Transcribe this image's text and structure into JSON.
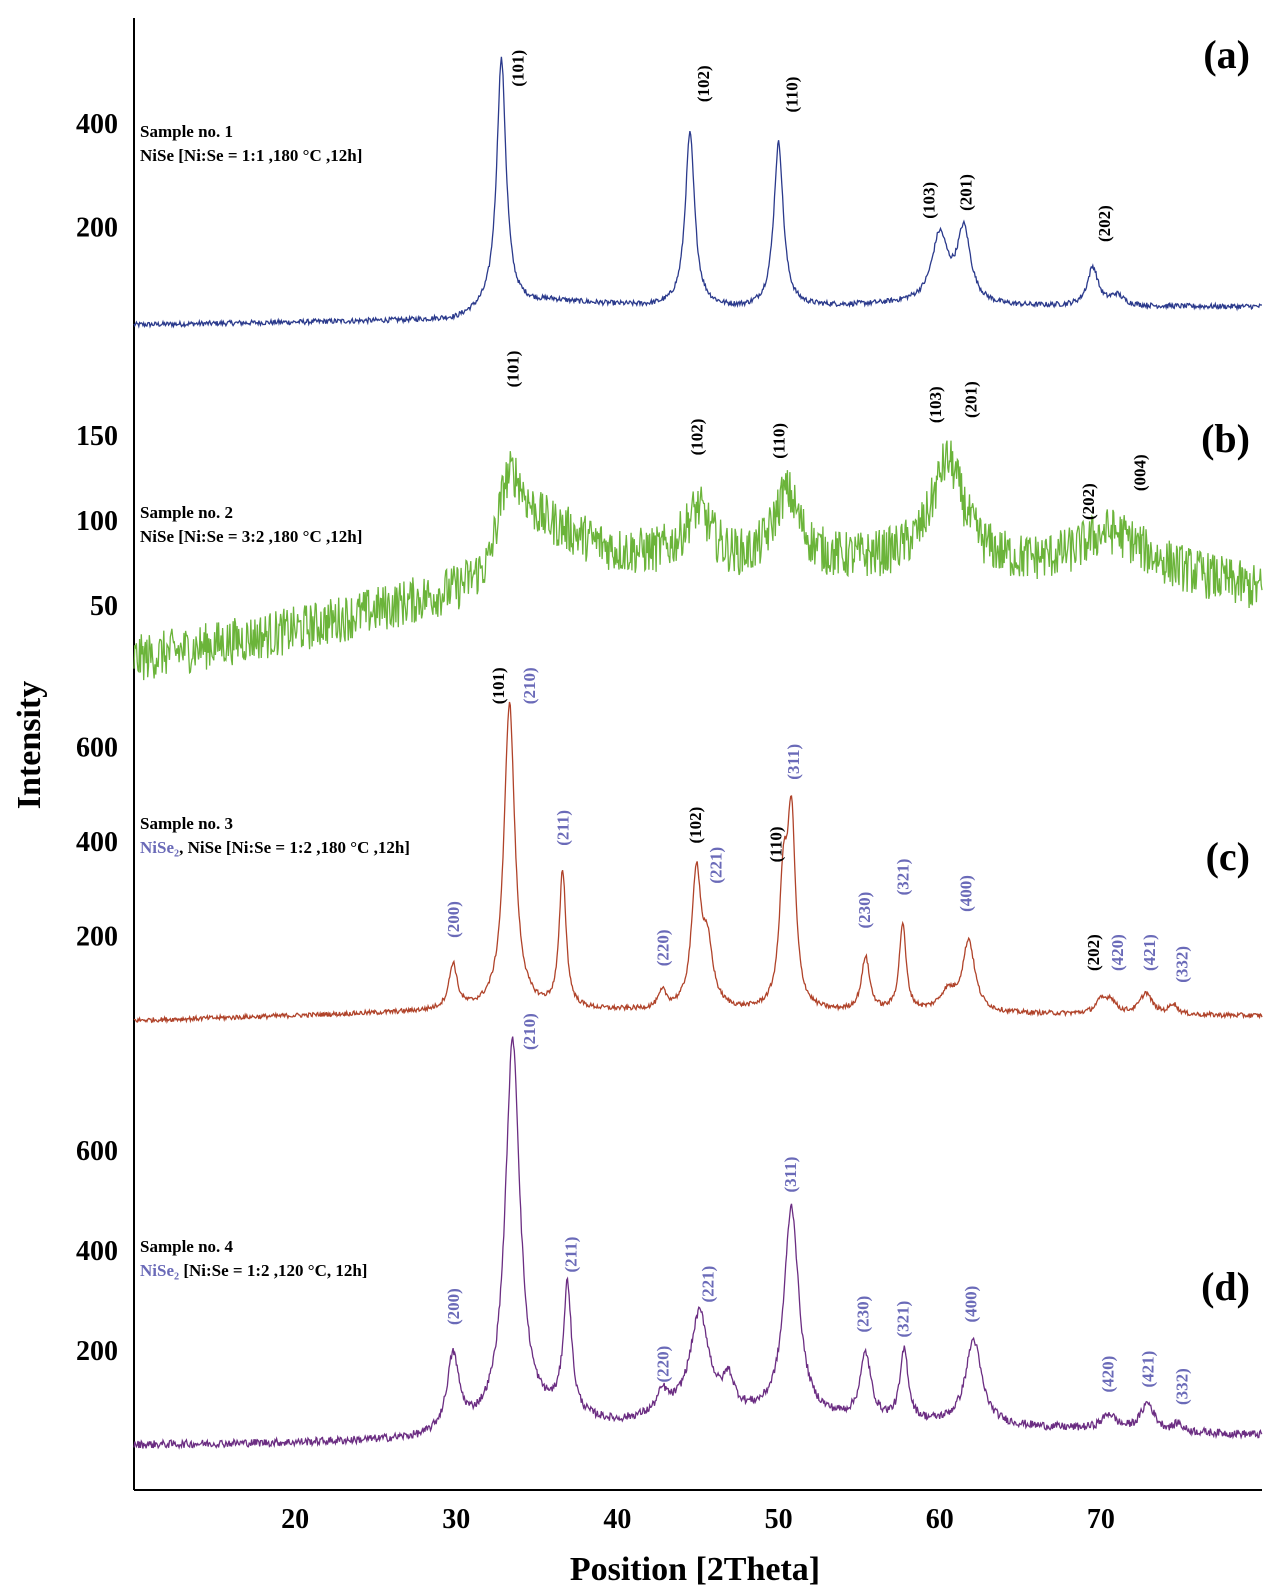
{
  "chart_data": {
    "type": "line",
    "xlabel": "Position [2Theta]",
    "ylabel": "Intensity",
    "xlim": [
      10,
      80
    ],
    "xticks": [
      20,
      30,
      40,
      50,
      60,
      70
    ],
    "grid": false,
    "panels": [
      {
        "id": "a",
        "letter": "(a)",
        "color": "#2b3a8c",
        "ylim": [
          0,
          560
        ],
        "yticks": [
          200,
          400
        ],
        "sample_lines": [
          [
            {
              "text": "Sample no. 1",
              "color": "black"
            }
          ],
          [
            {
              "text": "NiSe [Ni:Se = 1:1 ,180 °C ,12h]",
              "color": "black"
            }
          ]
        ],
        "noise": 5,
        "baseline": [
          [
            10,
            10
          ],
          [
            30,
            20
          ],
          [
            32,
            40
          ],
          [
            36,
            55
          ],
          [
            42,
            45
          ],
          [
            48,
            40
          ],
          [
            58,
            50
          ],
          [
            64,
            45
          ],
          [
            80,
            45
          ]
        ],
        "peaks": [
          [
            32.8,
            480,
            0.35
          ],
          [
            44.5,
            335,
            0.35
          ],
          [
            50.0,
            318,
            0.35
          ],
          [
            60.0,
            130,
            0.6
          ],
          [
            61.5,
            140,
            0.5
          ],
          [
            69.5,
            75,
            0.4
          ],
          [
            71,
            20,
            0.5
          ]
        ],
        "labels": [
          {
            "text": "(101)",
            "x": 33.8,
            "y": 470,
            "color": "black"
          },
          {
            "text": "(102)",
            "x": 45.3,
            "y": 440,
            "color": "black"
          },
          {
            "text": "(110)",
            "x": 50.8,
            "y": 420,
            "color": "black"
          },
          {
            "text": "(103)",
            "x": 59.3,
            "y": 215,
            "color": "black"
          },
          {
            "text": "(201)",
            "x": 61.6,
            "y": 230,
            "color": "black"
          },
          {
            "text": "(202)",
            "x": 70.2,
            "y": 170,
            "color": "black"
          }
        ]
      },
      {
        "id": "b",
        "letter": "(b)",
        "color": "#6bb43a",
        "ylim": [
          0,
          200
        ],
        "yticks": [
          50,
          100,
          150
        ],
        "sample_lines": [
          [
            {
              "text": "Sample no. 2",
              "color": "black"
            }
          ],
          [
            {
              "text": "NiSe [Ni:Se = 3:2 ,180 °C ,12h]",
              "color": "black"
            }
          ]
        ],
        "noise": 14,
        "baseline": [
          [
            10,
            18
          ],
          [
            20,
            35
          ],
          [
            30,
            58
          ],
          [
            32,
            68
          ],
          [
            33,
            100
          ],
          [
            36,
            95
          ],
          [
            40,
            80
          ],
          [
            48,
            72
          ],
          [
            58,
            75
          ],
          [
            65,
            72
          ],
          [
            72,
            75
          ],
          [
            80,
            58
          ]
        ],
        "peaks": [
          [
            33.5,
            28,
            0.9
          ],
          [
            45,
            30,
            1.0
          ],
          [
            50.5,
            42,
            1.0
          ],
          [
            60.5,
            60,
            1.2
          ],
          [
            70.5,
            18,
            2.0
          ]
        ],
        "labels": [
          {
            "text": "(101)",
            "x": 33.5,
            "y": 178,
            "color": "black"
          },
          {
            "text": "(102)",
            "x": 44.9,
            "y": 138,
            "color": "black"
          },
          {
            "text": "(110)",
            "x": 50.0,
            "y": 136,
            "color": "black"
          },
          {
            "text": "(103)",
            "x": 59.7,
            "y": 157,
            "color": "black"
          },
          {
            "text": "(201)",
            "x": 61.9,
            "y": 160,
            "color": "black"
          },
          {
            "text": "(202)",
            "x": 69.2,
            "y": 100,
            "color": "black"
          },
          {
            "text": "(004)",
            "x": 72.4,
            "y": 117,
            "color": "black"
          }
        ]
      },
      {
        "id": "c",
        "letter": "(c)",
        "color": "#b0432a",
        "ylim": [
          0,
          720
        ],
        "yticks": [
          200,
          400,
          600
        ],
        "sample_lines": [
          [
            {
              "text": "Sample no. 3",
              "color": "black"
            }
          ],
          [
            {
              "text": "NiSe₂",
              "color": "blue"
            },
            {
              "text": ", NiSe [Ni:Se = 1:2 ,180 °C ,12h]",
              "color": "black"
            }
          ]
        ],
        "noise": 5,
        "baseline": [
          [
            10,
            20
          ],
          [
            20,
            30
          ],
          [
            30,
            40
          ],
          [
            40,
            40
          ],
          [
            60,
            35
          ],
          [
            80,
            30
          ]
        ],
        "peaks": [
          [
            29.8,
            95,
            0.3
          ],
          [
            33.3,
            650,
            0.4
          ],
          [
            36.6,
            290,
            0.25
          ],
          [
            42.8,
            35,
            0.3
          ],
          [
            44.9,
            285,
            0.35
          ],
          [
            45.6,
            120,
            0.4
          ],
          [
            50.3,
            250,
            0.3
          ],
          [
            50.8,
            390,
            0.3
          ],
          [
            55.4,
            115,
            0.3
          ],
          [
            57.7,
            185,
            0.25
          ],
          [
            61.8,
            150,
            0.45
          ],
          [
            60.5,
            40,
            0.6
          ],
          [
            70.0,
            25,
            0.4
          ],
          [
            70.6,
            28,
            0.4
          ],
          [
            72.8,
            45,
            0.45
          ],
          [
            74.5,
            22,
            0.3
          ]
        ],
        "labels": [
          {
            "text": "(200)",
            "x": 29.8,
            "y": 195,
            "color": "blue"
          },
          {
            "text": "(101)",
            "x": 32.6,
            "y": 690,
            "color": "black"
          },
          {
            "text": "(210)",
            "x": 34.5,
            "y": 690,
            "color": "blue"
          },
          {
            "text": "(211)",
            "x": 36.6,
            "y": 390,
            "color": "blue"
          },
          {
            "text": "(220)",
            "x": 42.8,
            "y": 135,
            "color": "blue"
          },
          {
            "text": "(102)",
            "x": 44.8,
            "y": 395,
            "color": "black"
          },
          {
            "text": "(221)",
            "x": 46.1,
            "y": 310,
            "color": "blue"
          },
          {
            "text": "(110)",
            "x": 49.8,
            "y": 355,
            "color": "black"
          },
          {
            "text": "(311)",
            "x": 50.9,
            "y": 530,
            "color": "blue"
          },
          {
            "text": "(230)",
            "x": 55.3,
            "y": 215,
            "color": "blue"
          },
          {
            "text": "(321)",
            "x": 57.7,
            "y": 285,
            "color": "blue"
          },
          {
            "text": "(400)",
            "x": 61.6,
            "y": 250,
            "color": "blue"
          },
          {
            "text": "(202)",
            "x": 69.5,
            "y": 125,
            "color": "black"
          },
          {
            "text": "(420)",
            "x": 71.0,
            "y": 125,
            "color": "blue"
          },
          {
            "text": "(421)",
            "x": 73.0,
            "y": 125,
            "color": "blue"
          },
          {
            "text": "(332)",
            "x": 75.0,
            "y": 100,
            "color": "blue"
          }
        ]
      },
      {
        "id": "d",
        "letter": "(d)",
        "color": "#6b2d82",
        "ylim": [
          0,
          820
        ],
        "yticks": [
          200,
          400,
          600
        ],
        "sample_lines": [
          [
            {
              "text": "Sample no. 4",
              "color": "black"
            }
          ],
          [
            {
              "text": "NiSe₂",
              "color": "blue"
            },
            {
              "text": " [Ni:Se = 1:2 ,120 °C, 12h]",
              "color": "black"
            }
          ]
        ],
        "noise": 8,
        "baseline": [
          [
            10,
            10
          ],
          [
            20,
            14
          ],
          [
            28,
            20
          ],
          [
            32,
            40
          ],
          [
            36,
            60
          ],
          [
            40,
            50
          ],
          [
            44,
            70
          ],
          [
            48,
            65
          ],
          [
            52,
            60
          ],
          [
            60,
            50
          ],
          [
            70,
            40
          ],
          [
            80,
            30
          ]
        ],
        "peaks": [
          [
            29.8,
            150,
            0.45
          ],
          [
            33.5,
            770,
            0.55
          ],
          [
            36.9,
            260,
            0.3
          ],
          [
            42.8,
            40,
            0.4
          ],
          [
            45.1,
            200,
            0.7
          ],
          [
            46.9,
            60,
            0.4
          ],
          [
            50.8,
            420,
            0.55
          ],
          [
            55.4,
            130,
            0.4
          ],
          [
            57.8,
            140,
            0.3
          ],
          [
            62.1,
            170,
            0.6
          ],
          [
            70.5,
            30,
            0.5
          ],
          [
            72.9,
            55,
            0.5
          ],
          [
            74.8,
            15,
            0.3
          ]
        ],
        "labels": [
          {
            "text": "(200)",
            "x": 29.8,
            "y": 250,
            "color": "blue"
          },
          {
            "text": "(210)",
            "x": 34.5,
            "y": 800,
            "color": "blue"
          },
          {
            "text": "(211)",
            "x": 37.1,
            "y": 355,
            "color": "blue"
          },
          {
            "text": "(220)",
            "x": 42.8,
            "y": 135,
            "color": "blue"
          },
          {
            "text": "(221)",
            "x": 45.6,
            "y": 295,
            "color": "blue"
          },
          {
            "text": "(311)",
            "x": 50.7,
            "y": 515,
            "color": "blue"
          },
          {
            "text": "(230)",
            "x": 55.2,
            "y": 235,
            "color": "blue"
          },
          {
            "text": "(321)",
            "x": 57.7,
            "y": 225,
            "color": "blue"
          },
          {
            "text": "(400)",
            "x": 61.9,
            "y": 255,
            "color": "blue"
          },
          {
            "text": "(420)",
            "x": 70.4,
            "y": 115,
            "color": "blue"
          },
          {
            "text": "(421)",
            "x": 72.9,
            "y": 125,
            "color": "blue"
          },
          {
            "text": "(332)",
            "x": 75.0,
            "y": 90,
            "color": "blue"
          }
        ]
      }
    ]
  },
  "colors": {
    "label_black": "#000000",
    "label_blue": "#6a6ab8",
    "axis": "#000000"
  }
}
